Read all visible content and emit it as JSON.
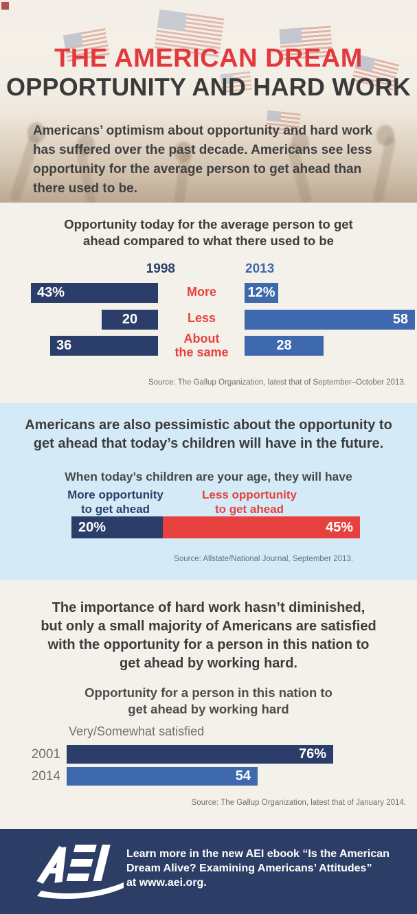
{
  "header": {
    "title": "THE AMERICAN DREAM",
    "subtitle": "OPPORTUNITY AND HARD WORK",
    "intro_lines": [
      "Americans’ optimism about opportunity and hard work",
      "has suffered over the past decade. Americans see less",
      "opportunity for the average person to get ahead than",
      "there used to be."
    ]
  },
  "s1": {
    "title_lines": [
      "Opportunity today for the average person to get",
      "ahead compared to what there used to be"
    ],
    "year_left": "1998",
    "year_right": "2013",
    "categories": [
      "More",
      "Less"
    ],
    "category_about_lines": [
      "About",
      "the same"
    ],
    "left_labels": [
      "43%",
      "20",
      "36"
    ],
    "right_labels": [
      "12%",
      "58",
      "28"
    ],
    "source": "Source: The Gallup Organization, latest that of September–October 2013."
  },
  "s2": {
    "heading_lines": [
      "Americans are also pessimistic about the opportunity to",
      "get ahead that today’s children will have in the future."
    ],
    "subheading": "When today’s children are your age, they will have",
    "label_more_lines": [
      "More opportunity",
      "to get ahead"
    ],
    "label_less_lines": [
      "Less opportunity",
      "to get ahead"
    ],
    "value_more_label": "20%",
    "value_less_label": "45%",
    "source": "Source: Allstate/National Journal, September 2013."
  },
  "s3": {
    "heading_lines": [
      "The importance of hard work hasn’t diminished,",
      "but only a small majority of Americans are satisfied",
      "with the opportunity for a person in this nation to",
      "get ahead by working hard."
    ],
    "chart_title_lines": [
      "Opportunity for a person in this nation to",
      "get ahead by working hard"
    ],
    "legend": "Very/Somewhat satisfied",
    "rows": [
      {
        "year": "2001",
        "label": "76%"
      },
      {
        "year": "2014",
        "label": "54"
      }
    ],
    "source": "Source: The Gallup Organization, latest that of January 2014."
  },
  "footer": {
    "logo_text": "AEI",
    "message_lines": [
      "Learn more in the new AEI ebook “Is the American",
      "Dream Alive? Examining Americans’ Attitudes”",
      "at www.aei.org."
    ]
  },
  "colors": {
    "title_red": "#E4383C",
    "charcoal": "#3C3C3C",
    "navy": "#2B3D69",
    "blue": "#3E69AF",
    "red": "#E6413E",
    "cream": "#F4F1EA",
    "light_blue": "#D5EAF7",
    "footer_navy": "#2D3E66"
  },
  "chart_data": [
    {
      "type": "bar",
      "orientation": "horizontal",
      "layout": "mirrored columns: 1998 bars grow leftward, 2013 bars grow rightward, category labels centered between",
      "title": "Opportunity today for the average person to get ahead compared to what there used to be",
      "categories": [
        "More",
        "Less",
        "About the same"
      ],
      "series": [
        {
          "name": "1998",
          "values": [
            43,
            20,
            36
          ]
        },
        {
          "name": "2013",
          "values": [
            12,
            58,
            28
          ]
        }
      ],
      "unit": "%",
      "value_range": [
        0,
        58
      ],
      "source": "Source: The Gallup Organization, latest that of September–October 2013."
    },
    {
      "type": "bar",
      "subtype": "single stacked horizontal bar",
      "title": "When today's children are your age, they will have",
      "categories": [
        "More opportunity to get ahead",
        "Less opportunity to get ahead"
      ],
      "values": [
        20,
        45
      ],
      "unit": "%",
      "source": "Source: Allstate/National Journal, September 2013."
    },
    {
      "type": "bar",
      "orientation": "horizontal",
      "title": "Opportunity for a person in this nation to get ahead by working hard",
      "legend": "Very/Somewhat satisfied",
      "categories": [
        "2001",
        "2014"
      ],
      "values": [
        76,
        54
      ],
      "unit": "%",
      "source": "Source: The Gallup Organization, latest that of January 2014."
    }
  ]
}
